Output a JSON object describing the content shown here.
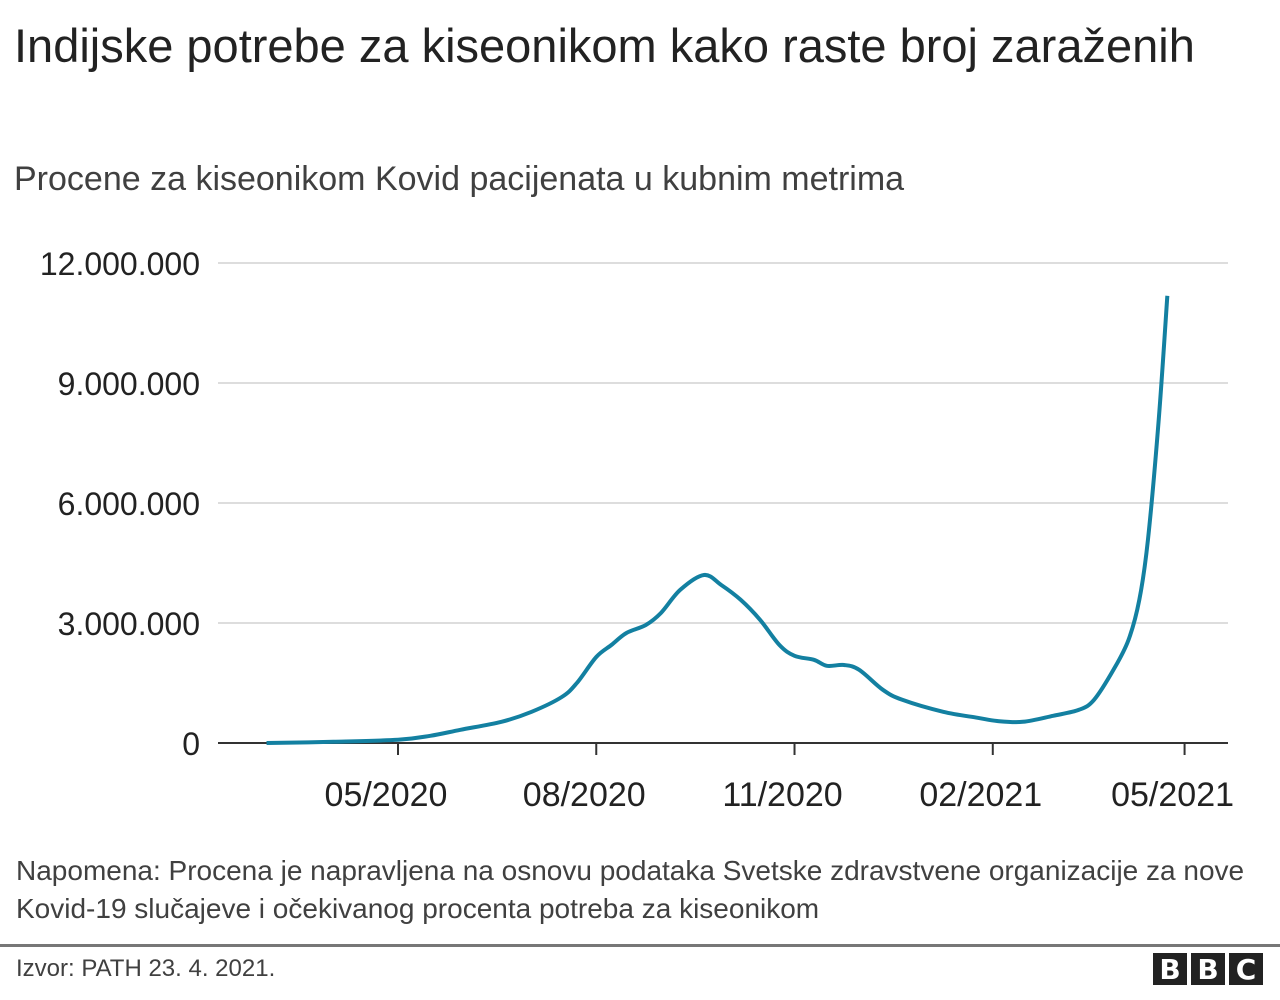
{
  "title": "Indijske potrebe za kiseonikom kako raste broj zaraženih",
  "subtitle": "Procene za kiseonikom Kovid pacijenata u kubnim metrima",
  "note": "Napomena: Procena je napravljena na osnovu podataka Svetske zdravstvene organizacije za nove Kovid-19 slučajeve i očekivanog procenta potreba za kiseonikom",
  "source": "Izvor: PATH 23. 4. 2021.",
  "logo": [
    "B",
    "B",
    "C"
  ],
  "chart_data": {
    "type": "line",
    "title": "Indijske potrebe za kiseonikom kako raste broj zaraženih",
    "subtitle": "Procene za kiseonikom Kovid pacijenata u kubnim metrima",
    "xlabel": "",
    "ylabel": "",
    "ylim": [
      0,
      12000000
    ],
    "yticks": [
      0,
      3000000,
      6000000,
      9000000,
      12000000
    ],
    "ytick_labels": [
      "0",
      "3.000.000",
      "6.000.000",
      "9.000.000",
      "12.000.000"
    ],
    "xticks": [
      "2020-05-01",
      "2020-08-01",
      "2020-11-01",
      "2021-02-01",
      "2021-05-01"
    ],
    "xtick_labels": [
      "05/2020",
      "08/2020",
      "11/2020",
      "02/2021",
      "05/2021"
    ],
    "grid": "horizontal",
    "color": "#1380A1",
    "series": [
      {
        "x": [
          "2020-03-01",
          "2020-04-01",
          "2020-05-01",
          "2020-05-16",
          "2020-05-30",
          "2020-06-18",
          "2020-07-02",
          "2020-07-16",
          "2020-07-23",
          "2020-08-01",
          "2020-08-08",
          "2020-08-15",
          "2020-08-24",
          "2020-08-31",
          "2020-09-09",
          "2020-09-20",
          "2020-09-28",
          "2020-10-07",
          "2020-10-16",
          "2020-10-25",
          "2020-11-01",
          "2020-11-10",
          "2020-11-16",
          "2020-11-24",
          "2020-12-01",
          "2020-12-12",
          "2020-12-21",
          "2021-01-09",
          "2021-01-25",
          "2021-02-03",
          "2021-02-15",
          "2021-03-01",
          "2021-03-13",
          "2021-03-20",
          "2021-03-29",
          "2021-04-05",
          "2021-04-10",
          "2021-04-14",
          "2021-04-19",
          "2021-04-23"
        ],
        "y": [
          0,
          30000,
          80000,
          180000,
          330000,
          530000,
          780000,
          1150000,
          1500000,
          2150000,
          2450000,
          2750000,
          2950000,
          3250000,
          3830000,
          4200000,
          3950000,
          3580000,
          3080000,
          2450000,
          2180000,
          2080000,
          1930000,
          1950000,
          1830000,
          1330000,
          1080000,
          780000,
          630000,
          550000,
          530000,
          680000,
          830000,
          1080000,
          1830000,
          2580000,
          3580000,
          5080000,
          8080000,
          11180000
        ]
      }
    ]
  }
}
